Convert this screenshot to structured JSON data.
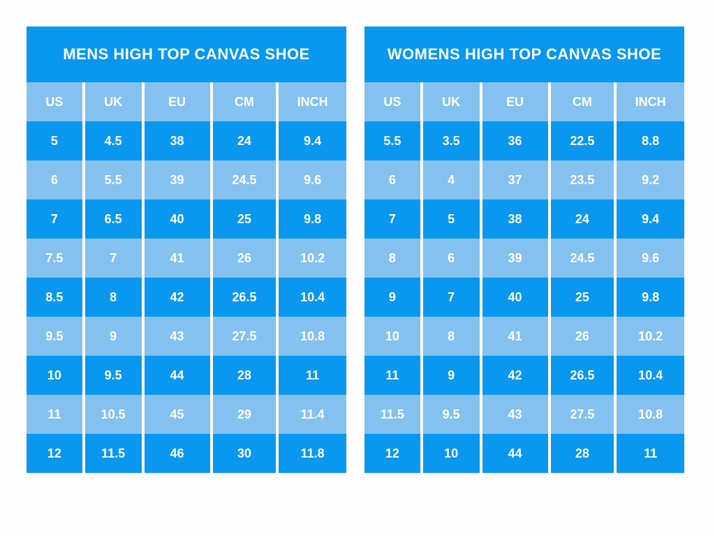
{
  "colors": {
    "dark_blue": "#0997ef",
    "light_blue": "#85c1ee",
    "divider_white": "#ffffff",
    "text_white": "#ffffff",
    "page_background": "#fdfdfd"
  },
  "chart_data": [
    {
      "type": "table",
      "title": "MENS HIGH TOP CANVAS SHOE",
      "columns": [
        "US",
        "UK",
        "EU",
        "CM",
        "INCH"
      ],
      "rows": [
        [
          "5",
          "4.5",
          "38",
          "24",
          "9.4"
        ],
        [
          "6",
          "5.5",
          "39",
          "24.5",
          "9.6"
        ],
        [
          "7",
          "6.5",
          "40",
          "25",
          "9.8"
        ],
        [
          "7.5",
          "7",
          "41",
          "26",
          "10.2"
        ],
        [
          "8.5",
          "8",
          "42",
          "26.5",
          "10.4"
        ],
        [
          "9.5",
          "9",
          "43",
          "27.5",
          "10.8"
        ],
        [
          "10",
          "9.5",
          "44",
          "28",
          "11"
        ],
        [
          "11",
          "10.5",
          "45",
          "29",
          "11.4"
        ],
        [
          "12",
          "11.5",
          "46",
          "30",
          "11.8"
        ]
      ]
    },
    {
      "type": "table",
      "title": "WOMENS HIGH TOP CANVAS SHOE",
      "columns": [
        "US",
        "UK",
        "EU",
        "CM",
        "INCH"
      ],
      "rows": [
        [
          "5.5",
          "3.5",
          "36",
          "22.5",
          "8.8"
        ],
        [
          "6",
          "4",
          "37",
          "23.5",
          "9.2"
        ],
        [
          "7",
          "5",
          "38",
          "24",
          "9.4"
        ],
        [
          "8",
          "6",
          "39",
          "24.5",
          "9.6"
        ],
        [
          "9",
          "7",
          "40",
          "25",
          "9.8"
        ],
        [
          "10",
          "8",
          "41",
          "26",
          "10.2"
        ],
        [
          "11",
          "9",
          "42",
          "26.5",
          "10.4"
        ],
        [
          "11.5",
          "9.5",
          "43",
          "27.5",
          "10.8"
        ],
        [
          "12",
          "10",
          "44",
          "28",
          "11"
        ]
      ]
    }
  ]
}
